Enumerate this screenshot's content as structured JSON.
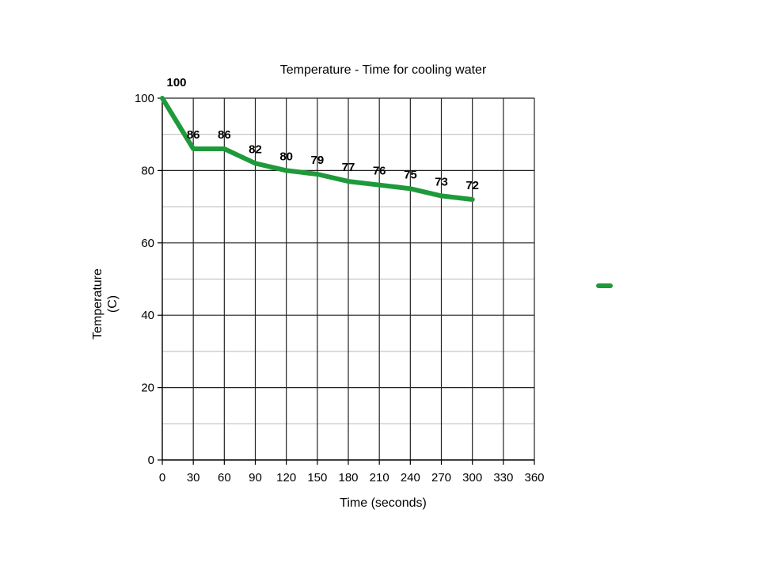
{
  "chart_data": {
    "type": "line",
    "title": "Temperature - Time for cooling water",
    "xlabel": "Time (seconds)",
    "ylabel_lines": [
      "Temperature",
      "(C)"
    ],
    "xlim": [
      0,
      360
    ],
    "ylim": [
      0,
      100
    ],
    "x_ticks": [
      0,
      30,
      60,
      90,
      120,
      150,
      180,
      210,
      240,
      270,
      300,
      330,
      360
    ],
    "y_ticks": [
      0,
      20,
      40,
      60,
      80,
      100
    ],
    "grid": true,
    "legend_position": "right",
    "series": [
      {
        "color": "#1f9a3a",
        "x": [
          0,
          30,
          60,
          90,
          120,
          150,
          180,
          210,
          240,
          270,
          300
        ],
        "values": [
          100,
          86,
          86,
          82,
          80,
          79,
          77,
          76,
          75,
          73,
          72
        ],
        "labels": [
          "100",
          "86",
          "86",
          "82",
          "80",
          "79",
          "77",
          "76",
          "75",
          "73",
          "72"
        ]
      }
    ]
  }
}
